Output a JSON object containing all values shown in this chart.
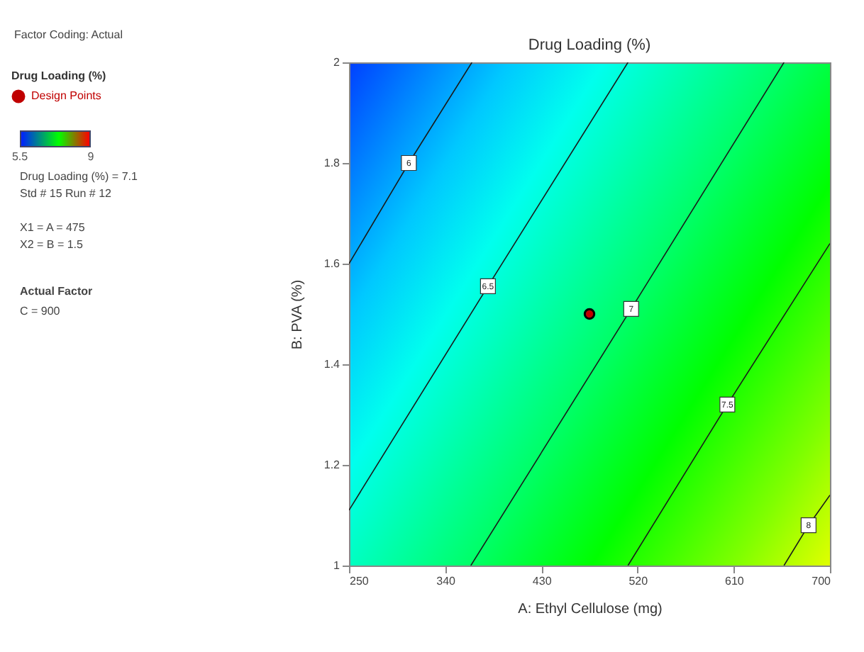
{
  "chart_data": {
    "type": "line",
    "title": "Drug Loading (%)",
    "xlabel": "A: Ethyl Cellulose (mg)",
    "ylabel": "B: PVA (%)",
    "legend_title": "Drug Loading (%)",
    "legend": "left",
    "xlim": [
      250,
      700
    ],
    "xticks": [
      250,
      340,
      430,
      520,
      610,
      700
    ],
    "ylim": [
      1,
      2
    ],
    "yticks": [
      1,
      1.2,
      1.4,
      1.6,
      1.8,
      2
    ],
    "clim": [
      5.5,
      9
    ],
    "cticks": [
      5.5,
      9
    ],
    "series": [
      {
        "name": "6",
        "type": "line",
        "color": "#1a1a1a",
        "x": [
          250,
          306,
          365
        ],
        "values": [
          1.6,
          1.8,
          2
        ]
      },
      {
        "name": "6.5",
        "type": "line",
        "color": "#1a1a1a",
        "x": [
          250,
          380,
          511
        ],
        "values": [
          1.11,
          1.555,
          2
        ]
      },
      {
        "name": "7",
        "type": "line",
        "color": "#1a1a1a",
        "x": [
          364,
          514,
          657
        ],
        "values": [
          1,
          1.51,
          2
        ]
      },
      {
        "name": "7.5",
        "type": "line",
        "color": "#1a1a1a",
        "x": [
          511,
          604,
          700
        ],
        "values": [
          1,
          1.32,
          1.64
        ]
      },
      {
        "name": "8",
        "type": "line",
        "color": "#1a1a1a",
        "x": [
          657,
          680,
          700
        ],
        "values": [
          1,
          1.08,
          1.14
        ]
      },
      {
        "name": "Design Points",
        "type": "scatter",
        "color": "#c00000",
        "x": [
          475
        ],
        "values": [
          1.5
        ]
      }
    ],
    "annotations": [
      "Factor Coding: Actual",
      "Drug Loading (%) = 7.1",
      "Std # 15 Run # 12",
      "X1 = A = 475",
      "X2 = B = 1.5",
      "Actual Factor",
      "C = 900"
    ]
  }
}
